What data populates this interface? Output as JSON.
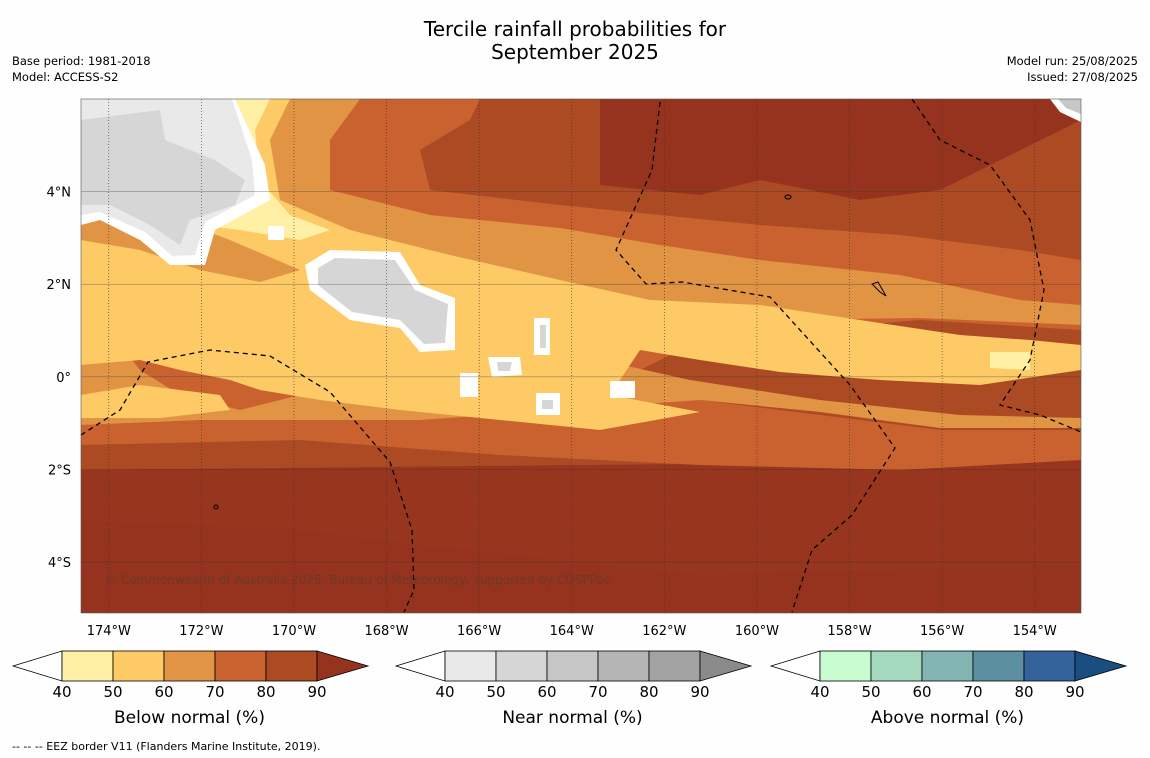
{
  "header": {
    "title_line1": "Tercile rainfall probabilities for",
    "title_line2": "September 2025",
    "base_period": "Base period: 1981-2018",
    "model": "Model: ACCESS-S2",
    "model_run": "Model run: 25/08/2025",
    "issued": "Issued: 27/08/2025"
  },
  "map": {
    "lat_labels": [
      "4°N",
      "2°N",
      "0°",
      "2°S",
      "4°S"
    ],
    "lat_values": [
      4,
      2,
      0,
      -2,
      -4
    ],
    "lon_labels": [
      "174°W",
      "172°W",
      "170°W",
      "168°W",
      "166°W",
      "164°W",
      "162°W",
      "160°W",
      "158°W",
      "156°W",
      "154°W"
    ],
    "lon_values": [
      -174,
      -172,
      -170,
      -168,
      -166,
      -164,
      -162,
      -160,
      -158,
      -156,
      -154
    ],
    "lat_range": [
      -5.1,
      6.0
    ],
    "lon_range": [
      -174.6,
      -153.0
    ],
    "copyright": "© Commonwealth of Australia 2025, Bureau of Meteorology, supported by COSPPac"
  },
  "colorbars": [
    {
      "title": "Below normal (%)",
      "ticks": [
        "40",
        "50",
        "60",
        "70",
        "80",
        "90"
      ],
      "colors": [
        "#fff0a6",
        "#fdca65",
        "#e09444",
        "#c9622e",
        "#ac4a24",
        "#95331e"
      ]
    },
    {
      "title": "Near normal (%)",
      "ticks": [
        "40",
        "50",
        "60",
        "70",
        "80",
        "90"
      ],
      "colors": [
        "#e9e9e9",
        "#d6d6d6",
        "#c6c6c6",
        "#b4b4b4",
        "#a2a2a2",
        "#8a8a8a"
      ]
    },
    {
      "title": "Above normal (%)",
      "ticks": [
        "40",
        "50",
        "60",
        "70",
        "80",
        "90"
      ],
      "colors": [
        "#c9fbd0",
        "#a4d9bf",
        "#82b5b1",
        "#5c8fa0",
        "#33639a",
        "#1a4d80"
      ]
    }
  ],
  "legend_note": "--  --  -- EEZ border V11 (Flanders Marine Institute, 2019)."
}
